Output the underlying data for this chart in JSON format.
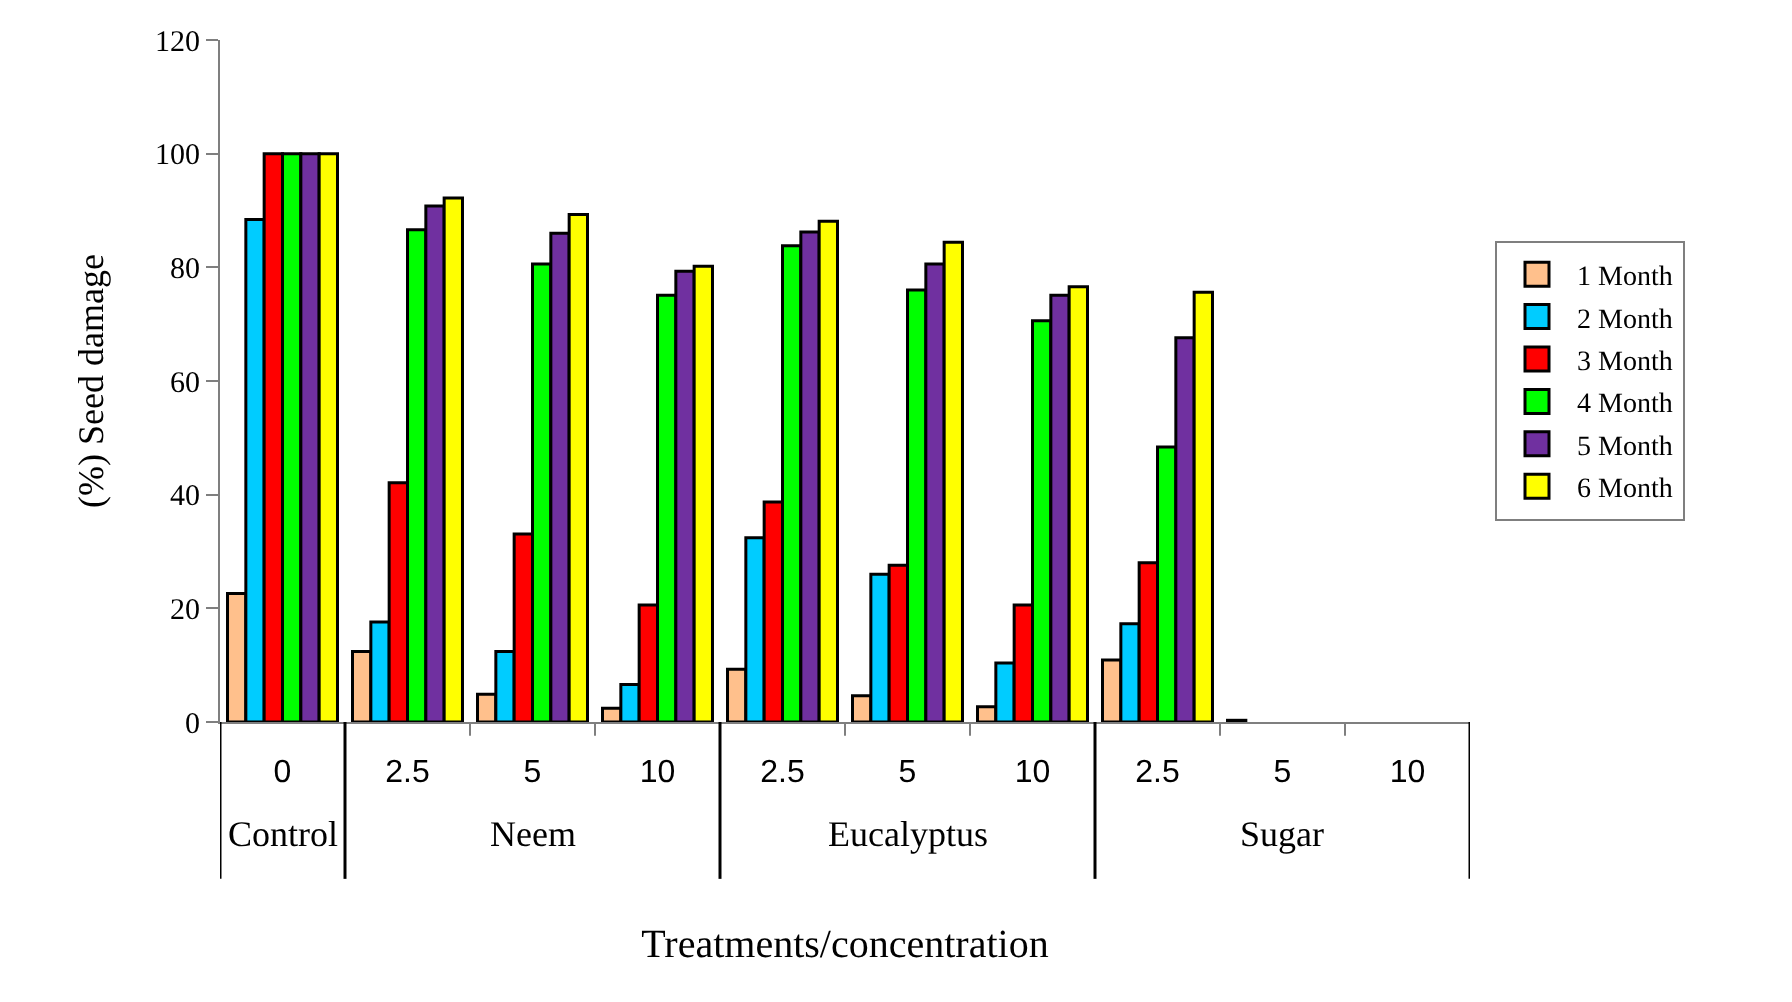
{
  "chart_data": {
    "type": "bar",
    "xlabel": "Treatments/concentration",
    "ylabel": "(%) Seed damage",
    "categories": [
      "0",
      "2.5",
      "5",
      "10",
      "2.5",
      "5",
      "10",
      "2.5",
      "5",
      "10"
    ],
    "annotations": [
      "Control",
      "Neem",
      "Eucalyptus",
      "Sugar"
    ],
    "series": [
      {
        "name": "1 Month",
        "color": "#ffc08c",
        "values": [
          22.6,
          12.4,
          4.9,
          2.4,
          9.3,
          4.6,
          2.7,
          10.9,
          0.3,
          0
        ]
      },
      {
        "name": "2 Month",
        "color": "#00ccff",
        "values": [
          88.4,
          17.6,
          12.4,
          6.6,
          32.4,
          26.0,
          10.4,
          17.3,
          0,
          0
        ]
      },
      {
        "name": "3 Month",
        "color": "#ff0000",
        "values": [
          100,
          42.1,
          33.1,
          20.6,
          38.7,
          27.6,
          20.6,
          28.0,
          0,
          0
        ]
      },
      {
        "name": "4 Month",
        "color": "#00ff00",
        "values": [
          100,
          86.6,
          80.6,
          75.1,
          83.8,
          76.0,
          70.6,
          48.4,
          0,
          0
        ]
      },
      {
        "name": "5 Month",
        "color": "#7030a0",
        "values": [
          100,
          90.8,
          86.0,
          79.3,
          86.2,
          80.6,
          75.1,
          67.6,
          0,
          0
        ]
      },
      {
        "name": "6 Month",
        "color": "#ffff00",
        "values": [
          100,
          92.2,
          89.3,
          80.2,
          88.1,
          84.4,
          76.6,
          75.6,
          0,
          0
        ]
      }
    ],
    "ylim": [
      0,
      120
    ],
    "yticks": [
      0,
      20,
      40,
      60,
      80,
      100,
      120
    ],
    "legend": "right"
  }
}
